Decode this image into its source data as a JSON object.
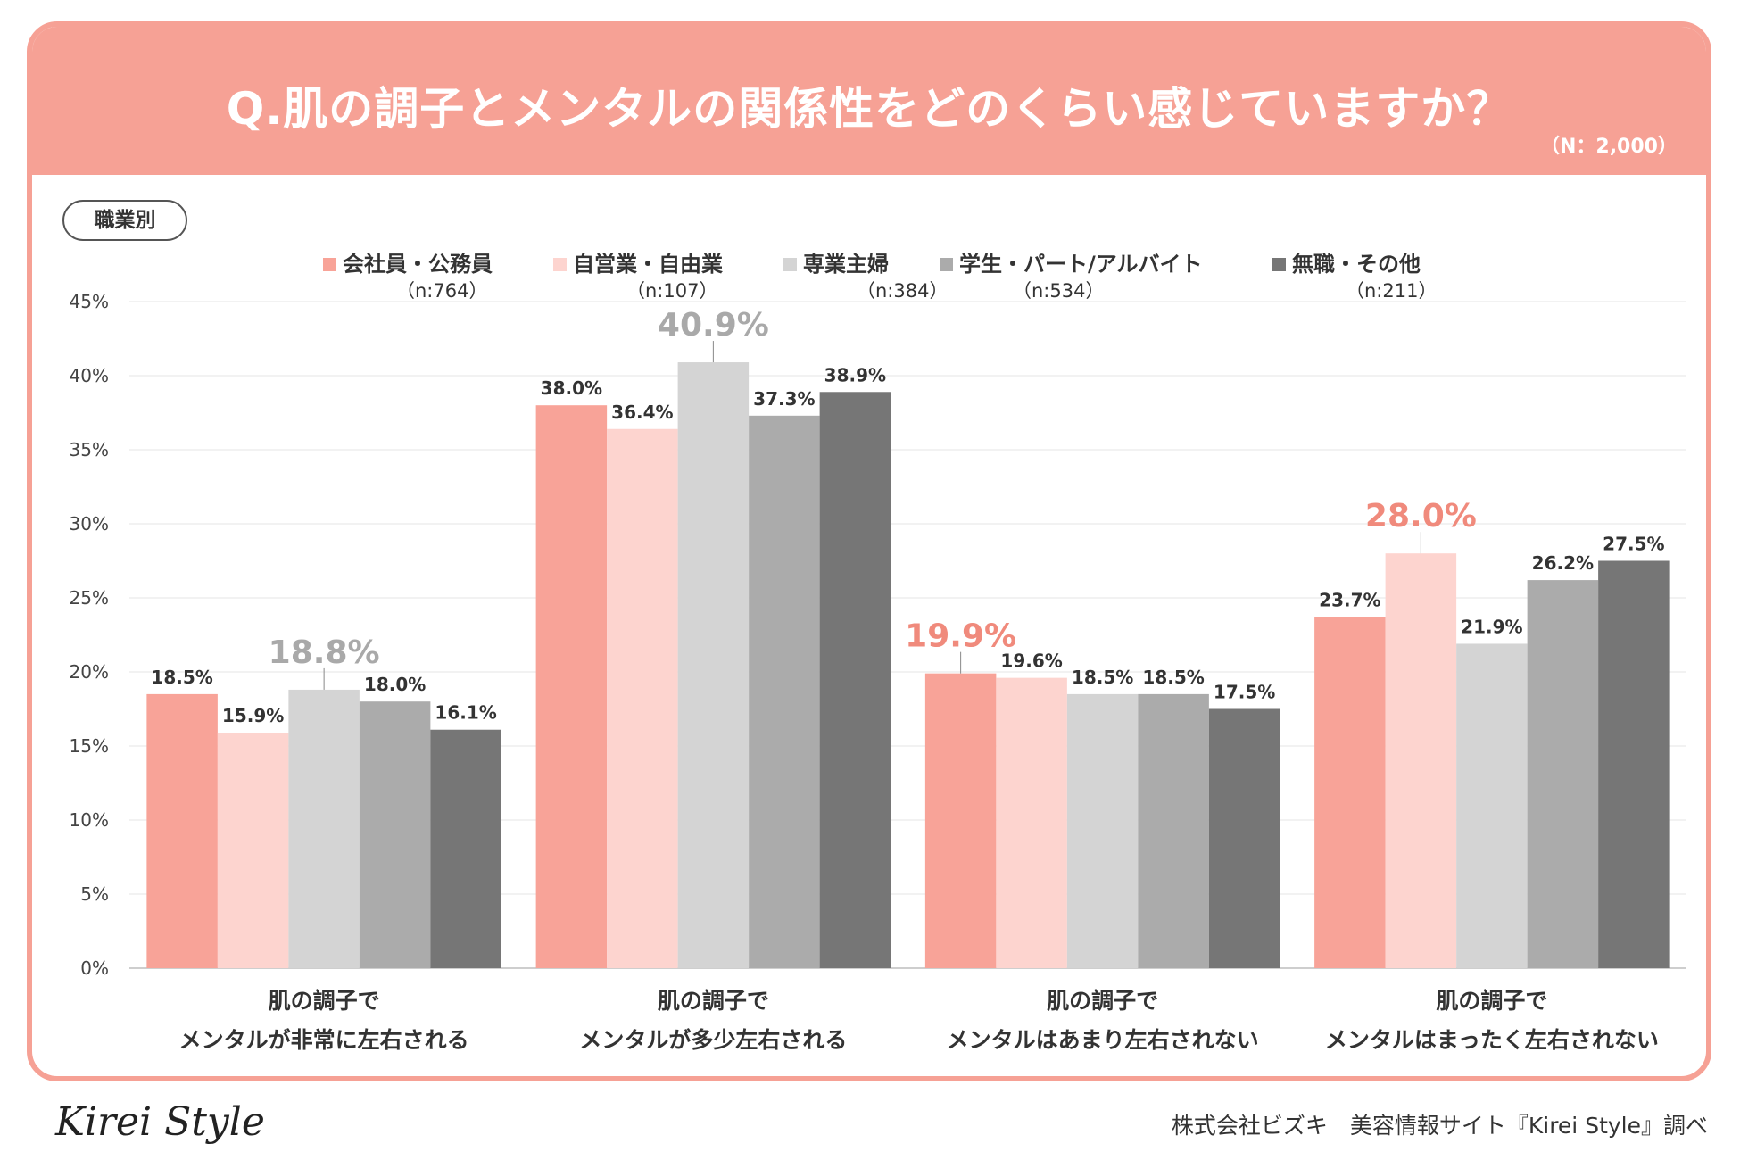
{
  "header": {
    "title": "Q.肌の調子とメンタルの関係性をどのくらい感じていますか？",
    "sample_size": "（N：2,000）"
  },
  "segment_label": "職業別",
  "colors": {
    "header_bg": "#f6a195",
    "highlight_pink": "#f08a7c",
    "highlight_gray": "#a9a9a9",
    "series": [
      "#f8a398",
      "#fdd4cf",
      "#d4d4d4",
      "#ababab",
      "#767676"
    ]
  },
  "chart_data": {
    "type": "bar",
    "title": "Q.肌の調子とメンタルの関係性をどのくらい感じていますか？",
    "xlabel": "",
    "ylabel": "",
    "ylim": [
      0,
      45
    ],
    "y_ticks": [
      0,
      5,
      10,
      15,
      20,
      25,
      30,
      35,
      40,
      45
    ],
    "y_tick_labels": [
      "0%",
      "5%",
      "10%",
      "15%",
      "20%",
      "25%",
      "30%",
      "35%",
      "40%",
      "45%"
    ],
    "grid": true,
    "legend_position": "top",
    "categories": [
      [
        "肌の調子で",
        "メンタルが非常に左右される"
      ],
      [
        "肌の調子で",
        "メンタルが多少左右される"
      ],
      [
        "肌の調子で",
        "メンタルはあまり左右されない"
      ],
      [
        "肌の調子で",
        "メンタルはまったく左右されない"
      ]
    ],
    "series": [
      {
        "name": "会社員・公務員",
        "n": "（n:764）",
        "values": [
          18.5,
          38.0,
          19.9,
          23.7
        ]
      },
      {
        "name": "自営業・自由業",
        "n": "（n:107）",
        "values": [
          15.9,
          36.4,
          19.6,
          28.0
        ]
      },
      {
        "name": "専業主婦",
        "n": "（n:384）",
        "values": [
          18.8,
          40.9,
          18.5,
          21.9
        ]
      },
      {
        "name": "学生・パート/アルバイト",
        "n": "（n:534）",
        "values": [
          18.0,
          37.3,
          18.5,
          26.2
        ]
      },
      {
        "name": "無職・その他",
        "n": "（n:211）",
        "values": [
          16.1,
          38.9,
          17.5,
          27.5
        ]
      }
    ],
    "value_labels": [
      [
        "18.5%",
        "38.0%",
        "19.9%",
        "23.7%"
      ],
      [
        "15.9%",
        "36.4%",
        "19.6%",
        "28.0%"
      ],
      [
        "18.8%",
        "40.9%",
        "18.5%",
        "21.9%"
      ],
      [
        "18.0%",
        "37.3%",
        "18.5%",
        "26.2%"
      ],
      [
        "16.1%",
        "38.9%",
        "17.5%",
        "27.5%"
      ]
    ],
    "highlights": [
      {
        "category": 0,
        "series": 2,
        "style": "gray"
      },
      {
        "category": 1,
        "series": 2,
        "style": "gray"
      },
      {
        "category": 2,
        "series": 0,
        "style": "pink"
      },
      {
        "category": 3,
        "series": 1,
        "style": "pink"
      }
    ]
  },
  "footer": {
    "logo": "Kirei Style",
    "credit": "株式会社ビズキ　美容情報サイト『Kirei Style』調べ"
  }
}
